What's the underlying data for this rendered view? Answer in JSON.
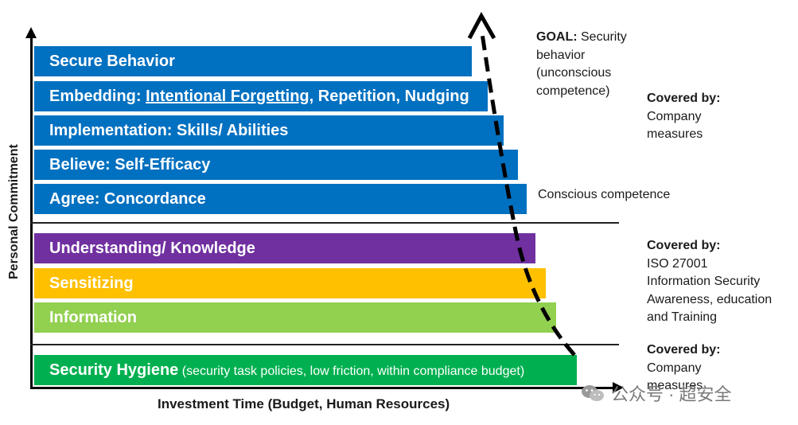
{
  "axes": {
    "y_label": "Personal Commitment",
    "x_label": "Investment Time (Budget, Human Resources)"
  },
  "bars": {
    "secure_behavior": "Secure Behavior",
    "embedding_prefix": "Embedding: ",
    "embedding_underlined": "Intentional Forgetting",
    "embedding_suffix": ", Repetition, Nudging",
    "implementation": "Implementation: Skills/ Abilities",
    "believe": "Believe: Self-Efficacy",
    "agree": "Agree: Concordance",
    "understanding": "Understanding/ Knowledge",
    "sensitizing": "Sensitizing",
    "information": "Information",
    "hygiene_main": "Security Hygiene",
    "hygiene_detail": " (security task policies, low friction, within compliance budget)"
  },
  "notes": {
    "goal_bold": "GOAL:",
    "goal_line1_rest": " Security",
    "goal_line2": "behavior",
    "goal_line3": "(unconscious",
    "goal_line4": "competence)",
    "covered_by_1_title": "Covered by:",
    "covered_by_1_line1": "Company",
    "covered_by_1_line2": "measures",
    "conscious": "Conscious competence",
    "covered_by_2_title": "Covered by:",
    "covered_by_2_line1": "ISO 27001",
    "covered_by_2_line2": "Information Security",
    "covered_by_2_line3": "Awareness, education",
    "covered_by_2_line4": "and Training",
    "covered_by_3_title": "Covered by:",
    "covered_by_3_line1": "Company",
    "covered_by_3_line2": "measures"
  },
  "watermark": {
    "text": "公众号 · 超安全",
    "icon": "wechat-icon"
  },
  "colors": {
    "blue": "#0070c0",
    "purple": "#7030a0",
    "yellow": "#ffc000",
    "light_green": "#92d050",
    "green": "#00b050"
  }
}
